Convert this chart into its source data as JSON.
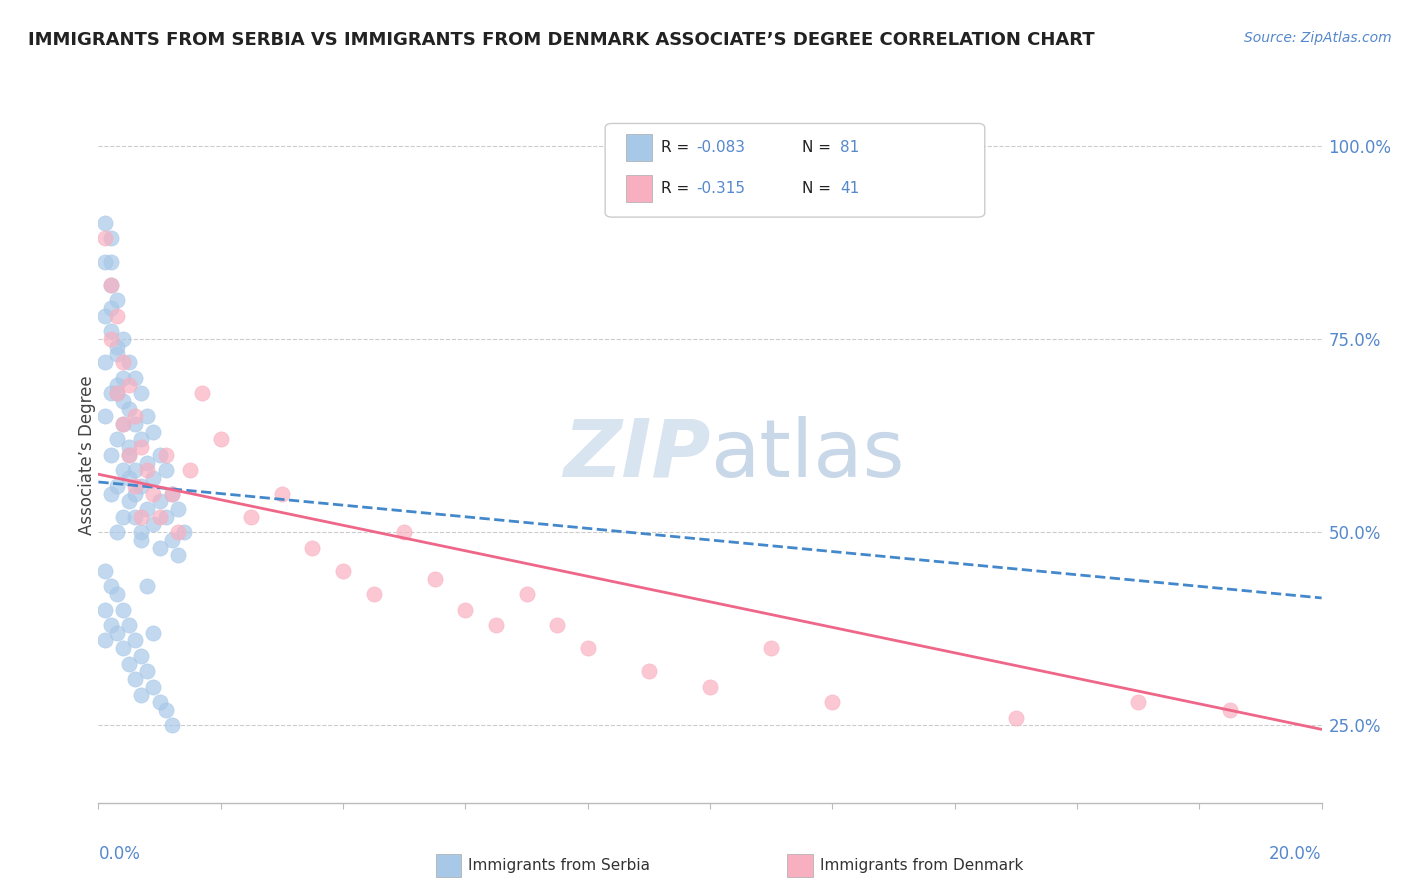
{
  "title": "IMMIGRANTS FROM SERBIA VS IMMIGRANTS FROM DENMARK ASSOCIATE’S DEGREE CORRELATION CHART",
  "source_text": "Source: ZipAtlas.com",
  "ylabel": "Associate’s Degree",
  "yaxis_ticks": [
    0.25,
    0.5,
    0.75,
    1.0
  ],
  "yaxis_labels": [
    "25.0%",
    "50.0%",
    "75.0%",
    "100.0%"
  ],
  "xmin": 0.0,
  "xmax": 0.2,
  "ymin": 0.15,
  "ymax": 1.05,
  "serbia_R": -0.083,
  "serbia_N": 81,
  "denmark_R": -0.315,
  "denmark_N": 41,
  "serbia_color": "#a8c8e8",
  "denmark_color": "#f8b0c0",
  "serbia_line_color": "#4488cc",
  "denmark_line_color": "#ee6688",
  "watermark_color": "#d8e4f0",
  "legend_label_serbia": "Immigrants from Serbia",
  "legend_label_denmark": "Immigrants from Denmark",
  "serbia_line_y0": 0.565,
  "serbia_line_y1": 0.415,
  "denmark_line_y0": 0.575,
  "denmark_line_y1": 0.245,
  "serbia_scatter_x": [
    0.001,
    0.001,
    0.001,
    0.001,
    0.001,
    0.002,
    0.002,
    0.002,
    0.002,
    0.002,
    0.002,
    0.003,
    0.003,
    0.003,
    0.003,
    0.003,
    0.003,
    0.004,
    0.004,
    0.004,
    0.004,
    0.004,
    0.005,
    0.005,
    0.005,
    0.005,
    0.006,
    0.006,
    0.006,
    0.006,
    0.007,
    0.007,
    0.007,
    0.007,
    0.008,
    0.008,
    0.008,
    0.009,
    0.009,
    0.009,
    0.01,
    0.01,
    0.01,
    0.011,
    0.011,
    0.012,
    0.012,
    0.013,
    0.013,
    0.014,
    0.001,
    0.001,
    0.001,
    0.002,
    0.002,
    0.003,
    0.003,
    0.004,
    0.004,
    0.005,
    0.005,
    0.006,
    0.006,
    0.007,
    0.007,
    0.008,
    0.009,
    0.01,
    0.011,
    0.012,
    0.002,
    0.003,
    0.004,
    0.005,
    0.006,
    0.007,
    0.008,
    0.009,
    0.002,
    0.003,
    0.005
  ],
  "serbia_scatter_y": [
    0.9,
    0.85,
    0.78,
    0.72,
    0.65,
    0.88,
    0.82,
    0.76,
    0.68,
    0.6,
    0.55,
    0.8,
    0.74,
    0.68,
    0.62,
    0.56,
    0.5,
    0.75,
    0.7,
    0.64,
    0.58,
    0.52,
    0.72,
    0.66,
    0.6,
    0.54,
    0.7,
    0.64,
    0.58,
    0.52,
    0.68,
    0.62,
    0.56,
    0.5,
    0.65,
    0.59,
    0.53,
    0.63,
    0.57,
    0.51,
    0.6,
    0.54,
    0.48,
    0.58,
    0.52,
    0.55,
    0.49,
    0.53,
    0.47,
    0.5,
    0.45,
    0.4,
    0.36,
    0.43,
    0.38,
    0.42,
    0.37,
    0.4,
    0.35,
    0.38,
    0.33,
    0.36,
    0.31,
    0.34,
    0.29,
    0.32,
    0.3,
    0.28,
    0.27,
    0.25,
    0.85,
    0.73,
    0.67,
    0.61,
    0.55,
    0.49,
    0.43,
    0.37,
    0.79,
    0.69,
    0.57
  ],
  "denmark_scatter_x": [
    0.001,
    0.002,
    0.002,
    0.003,
    0.003,
    0.004,
    0.004,
    0.005,
    0.005,
    0.006,
    0.006,
    0.007,
    0.007,
    0.008,
    0.009,
    0.01,
    0.011,
    0.012,
    0.013,
    0.015,
    0.017,
    0.02,
    0.025,
    0.03,
    0.035,
    0.04,
    0.045,
    0.05,
    0.055,
    0.06,
    0.065,
    0.07,
    0.075,
    0.08,
    0.09,
    0.1,
    0.11,
    0.12,
    0.15,
    0.17,
    0.185
  ],
  "denmark_scatter_y": [
    0.88,
    0.82,
    0.75,
    0.78,
    0.68,
    0.72,
    0.64,
    0.69,
    0.6,
    0.65,
    0.56,
    0.61,
    0.52,
    0.58,
    0.55,
    0.52,
    0.6,
    0.55,
    0.5,
    0.58,
    0.68,
    0.62,
    0.52,
    0.55,
    0.48,
    0.45,
    0.42,
    0.5,
    0.44,
    0.4,
    0.38,
    0.42,
    0.38,
    0.35,
    0.32,
    0.3,
    0.35,
    0.28,
    0.26,
    0.28,
    0.27
  ]
}
